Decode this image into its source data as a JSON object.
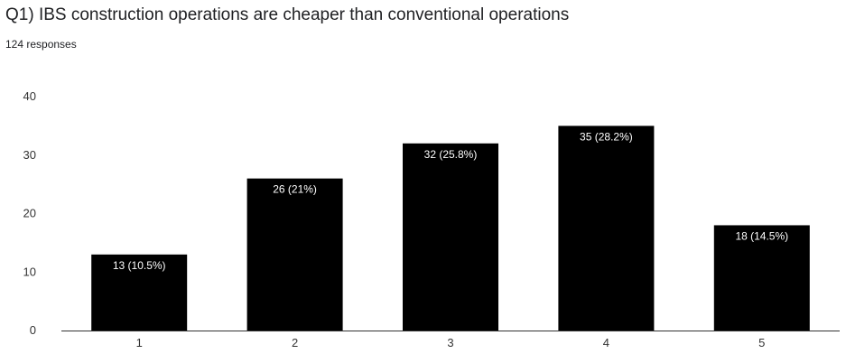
{
  "header": {
    "question": "Q1) IBS construction operations are cheaper than conventional operations",
    "responses": "124 responses"
  },
  "chart_data": {
    "type": "bar",
    "categories": [
      "1",
      "2",
      "3",
      "4",
      "5"
    ],
    "values": [
      13,
      26,
      32,
      35,
      18
    ],
    "data_labels": [
      "13 (10.5%)",
      "26 (21%)",
      "32 (25.8%)",
      "35 (28.2%)",
      "18 (14.5%)"
    ],
    "title": "Q1) IBS construction operations are cheaper than conventional operations",
    "xlabel": "",
    "ylabel": "",
    "ylim": [
      0,
      40
    ],
    "yticks": [
      0,
      10,
      20,
      30,
      40
    ],
    "grid": false,
    "bar_color": "#000000",
    "label_color": "#ffffff"
  }
}
